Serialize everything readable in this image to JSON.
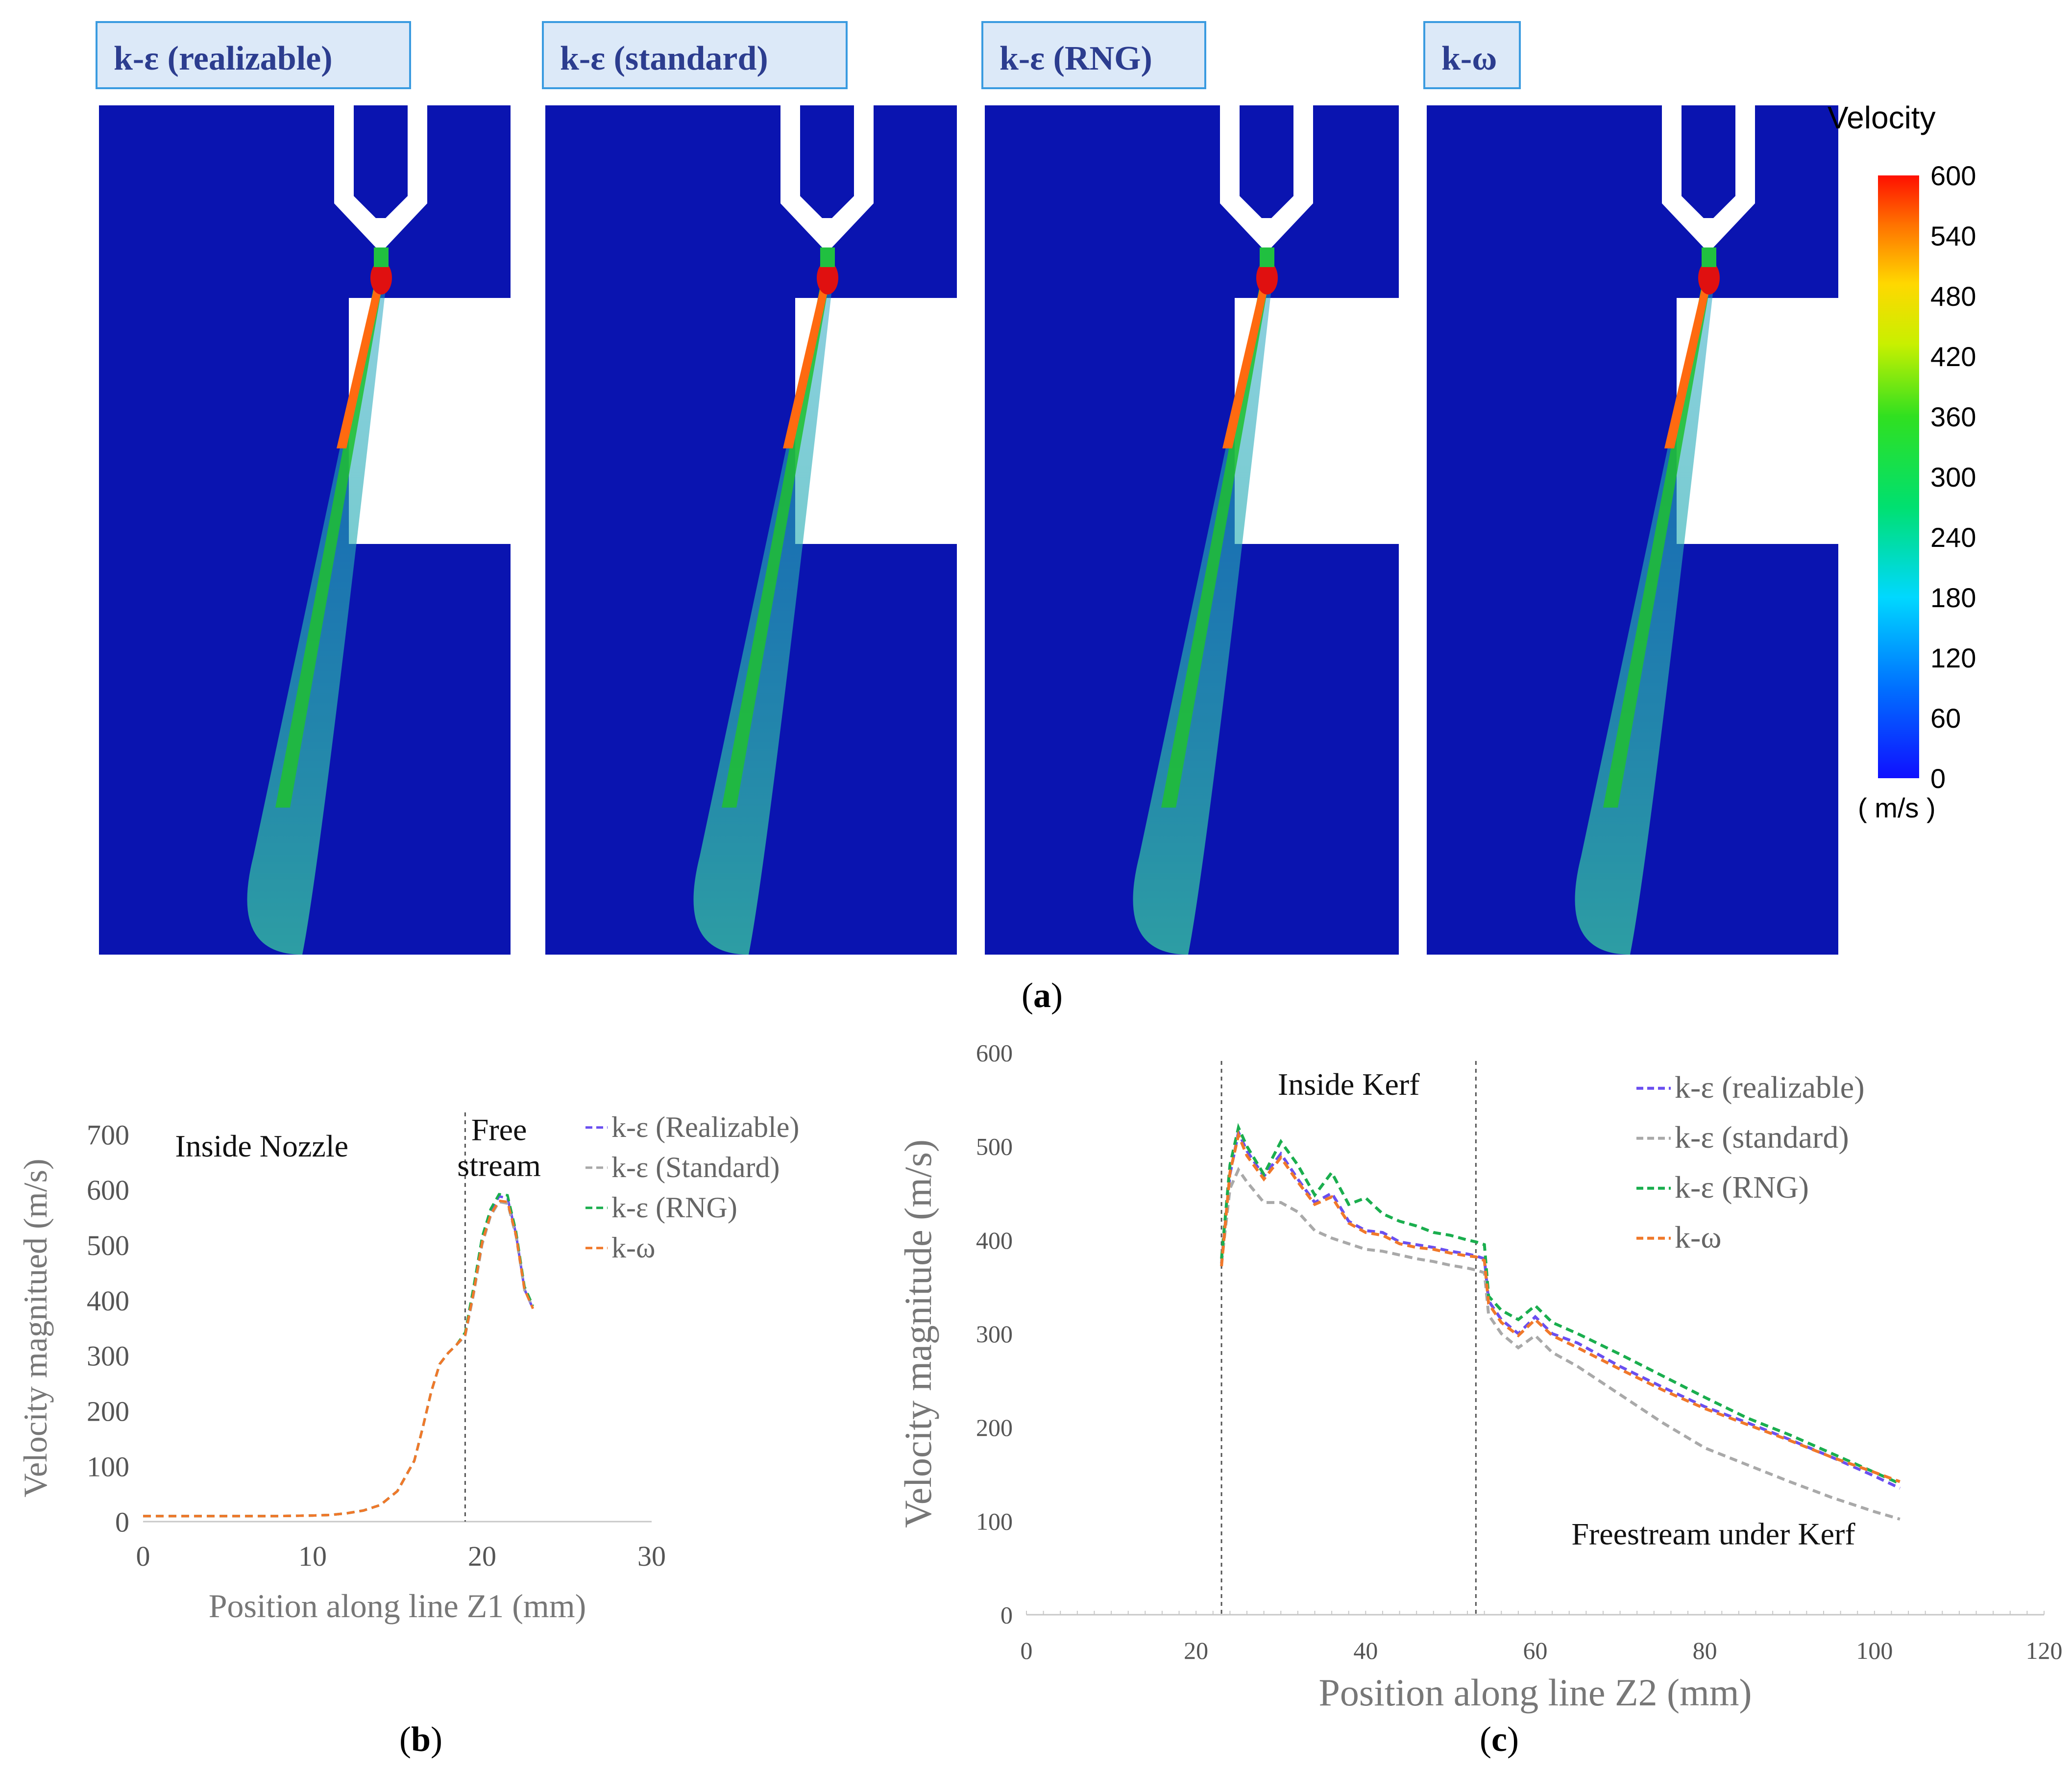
{
  "panels": {
    "a": {
      "open": "(",
      "letter": "a",
      "close": ")"
    },
    "b": {
      "open": "(",
      "letter": "b",
      "close": ")"
    },
    "c": {
      "open": "(",
      "letter": "c",
      "close": ")"
    }
  },
  "contour_panels": [
    {
      "title": "k-ε (realizable)"
    },
    {
      "title": "k-ε (standard)"
    },
    {
      "title": "k-ε (RNG)"
    },
    {
      "title": "k-ω"
    }
  ],
  "colorbar": {
    "title": "Velocity",
    "unit": "( m/s )",
    "min": 0,
    "max": 600,
    "ticks": [
      600,
      540,
      480,
      420,
      360,
      300,
      240,
      180,
      120,
      60,
      0
    ]
  },
  "colors": {
    "realizable": "#6a4ff0",
    "standard": "#a9a9a9",
    "rng": "#1aae4e",
    "komega": "#f0782a",
    "label_box_bg": "#dce9f8",
    "label_box_border": "#3a9be0",
    "label_text": "#2c3d8f",
    "field_bg": "#0a14b0"
  },
  "chart_data": [
    {
      "id": "b",
      "type": "line",
      "xlabel": "Position along line Z1 (mm)",
      "ylabel": "Velocity magnitued (m/s)",
      "xlim": [
        0,
        30
      ],
      "ylim": [
        0,
        700
      ],
      "xticks": [
        0,
        10,
        20,
        30
      ],
      "yticks": [
        0,
        100,
        200,
        300,
        400,
        500,
        600,
        700
      ],
      "vline": 19,
      "annotations": [
        {
          "text": "Inside Nozzle",
          "x": 7,
          "y": 660
        },
        {
          "text": "Free",
          "x": 21,
          "y": 690
        },
        {
          "text": "stream",
          "x": 21,
          "y": 625
        }
      ],
      "series": [
        {
          "name": "k-ε (Realizable)",
          "color_key": "realizable",
          "x": [
            0,
            2,
            4,
            6,
            8,
            10,
            11,
            12,
            13,
            14,
            15,
            16,
            16.5,
            17,
            17.5,
            18,
            18.5,
            19,
            19.5,
            20,
            20.5,
            21,
            21.5,
            22,
            22.5,
            23
          ],
          "y": [
            10,
            10,
            10,
            10,
            10,
            11,
            12,
            15,
            20,
            30,
            55,
            110,
            170,
            235,
            285,
            305,
            320,
            340,
            420,
            510,
            560,
            588,
            585,
            520,
            420,
            385
          ]
        },
        {
          "name": "k-ε (Standard)",
          "color_key": "standard",
          "x": [
            0,
            2,
            4,
            6,
            8,
            10,
            11,
            12,
            13,
            14,
            15,
            16,
            16.5,
            17,
            17.5,
            18,
            18.5,
            19,
            19.5,
            20,
            20.5,
            21,
            21.5,
            22,
            22.5,
            23
          ],
          "y": [
            10,
            10,
            10,
            10,
            10,
            11,
            12,
            15,
            20,
            30,
            55,
            110,
            170,
            235,
            285,
            305,
            320,
            335,
            410,
            500,
            552,
            578,
            575,
            515,
            418,
            388
          ]
        },
        {
          "name": "k-ε (RNG)",
          "color_key": "rng",
          "x": [
            0,
            2,
            4,
            6,
            8,
            10,
            11,
            12,
            13,
            14,
            15,
            16,
            16.5,
            17,
            17.5,
            18,
            18.5,
            19,
            19.5,
            20,
            20.5,
            21,
            21.5,
            22,
            22.5,
            23
          ],
          "y": [
            10,
            10,
            10,
            10,
            10,
            11,
            12,
            15,
            20,
            30,
            55,
            110,
            170,
            235,
            285,
            305,
            320,
            342,
            425,
            515,
            565,
            592,
            590,
            525,
            425,
            390
          ]
        },
        {
          "name": "k-ω",
          "color_key": "komega",
          "x": [
            0,
            2,
            4,
            6,
            8,
            10,
            11,
            12,
            13,
            14,
            15,
            16,
            16.5,
            17,
            17.5,
            18,
            18.5,
            19,
            19.5,
            20,
            20.5,
            21,
            21.5,
            22,
            22.5,
            23
          ],
          "y": [
            10,
            10,
            10,
            10,
            10,
            11,
            12,
            15,
            20,
            30,
            55,
            110,
            170,
            235,
            285,
            305,
            320,
            338,
            415,
            505,
            555,
            580,
            578,
            518,
            420,
            385
          ]
        }
      ]
    },
    {
      "id": "c",
      "type": "line",
      "xlabel": "Position along line Z2 (mm)",
      "ylabel": "Velocity magnitude (m/s)",
      "xlim": [
        0,
        120
      ],
      "ylim": [
        0,
        600
      ],
      "xticks": [
        0,
        20,
        40,
        60,
        80,
        100,
        120
      ],
      "yticks": [
        0,
        100,
        200,
        300,
        400,
        500,
        600
      ],
      "vlines": [
        23,
        53
      ],
      "annotations": [
        {
          "text": "Inside Kerf",
          "x": 38,
          "y": 555
        },
        {
          "text": "Freestream under Kerf",
          "x": 81,
          "y": 75
        }
      ],
      "series": [
        {
          "name": "k-ε  (realizable)",
          "color_key": "realizable",
          "x": [
            23,
            24,
            25,
            26,
            28,
            30,
            32,
            34,
            36,
            38,
            40,
            42,
            44,
            46,
            48,
            50,
            52,
            53,
            54,
            54.5,
            56,
            58,
            60,
            62,
            65,
            70,
            75,
            80,
            85,
            90,
            95,
            100,
            103
          ],
          "y": [
            375,
            470,
            515,
            495,
            468,
            492,
            465,
            440,
            450,
            420,
            410,
            408,
            398,
            395,
            392,
            388,
            385,
            383,
            380,
            335,
            315,
            300,
            318,
            300,
            290,
            265,
            243,
            222,
            205,
            187,
            168,
            148,
            135
          ]
        },
        {
          "name": "k-ε  (standard)",
          "color_key": "standard",
          "x": [
            23,
            24,
            25,
            26,
            28,
            30,
            32,
            34,
            36,
            38,
            40,
            42,
            44,
            46,
            48,
            50,
            52,
            53,
            54,
            54.5,
            56,
            58,
            60,
            62,
            65,
            70,
            75,
            80,
            85,
            90,
            95,
            100,
            103
          ],
          "y": [
            375,
            455,
            475,
            462,
            440,
            440,
            430,
            410,
            402,
            396,
            390,
            388,
            384,
            380,
            377,
            373,
            370,
            368,
            365,
            320,
            300,
            285,
            298,
            280,
            265,
            235,
            205,
            178,
            160,
            142,
            125,
            110,
            102
          ]
        },
        {
          "name": "k-ε (RNG)",
          "color_key": "rng",
          "x": [
            23,
            24,
            25,
            26,
            28,
            30,
            32,
            34,
            36,
            38,
            40,
            42,
            44,
            46,
            48,
            50,
            52,
            53,
            54,
            54.5,
            56,
            58,
            60,
            62,
            65,
            70,
            75,
            80,
            85,
            90,
            95,
            100,
            103
          ],
          "y": [
            380,
            480,
            520,
            500,
            470,
            505,
            480,
            448,
            472,
            438,
            445,
            428,
            420,
            415,
            408,
            405,
            400,
            398,
            395,
            340,
            325,
            315,
            330,
            312,
            300,
            278,
            255,
            232,
            210,
            192,
            172,
            152,
            140
          ]
        },
        {
          "name": "k-ω",
          "color_key": "komega",
          "x": [
            23,
            24,
            25,
            26,
            28,
            30,
            32,
            34,
            36,
            38,
            40,
            42,
            44,
            46,
            48,
            50,
            52,
            53,
            54,
            54.5,
            56,
            58,
            60,
            62,
            65,
            70,
            75,
            80,
            85,
            90,
            95,
            100,
            103
          ],
          "y": [
            372,
            472,
            512,
            490,
            465,
            488,
            462,
            438,
            446,
            418,
            408,
            405,
            396,
            392,
            390,
            386,
            383,
            382,
            378,
            332,
            312,
            298,
            315,
            298,
            285,
            262,
            240,
            220,
            203,
            186,
            168,
            152,
            142
          ]
        }
      ]
    }
  ]
}
